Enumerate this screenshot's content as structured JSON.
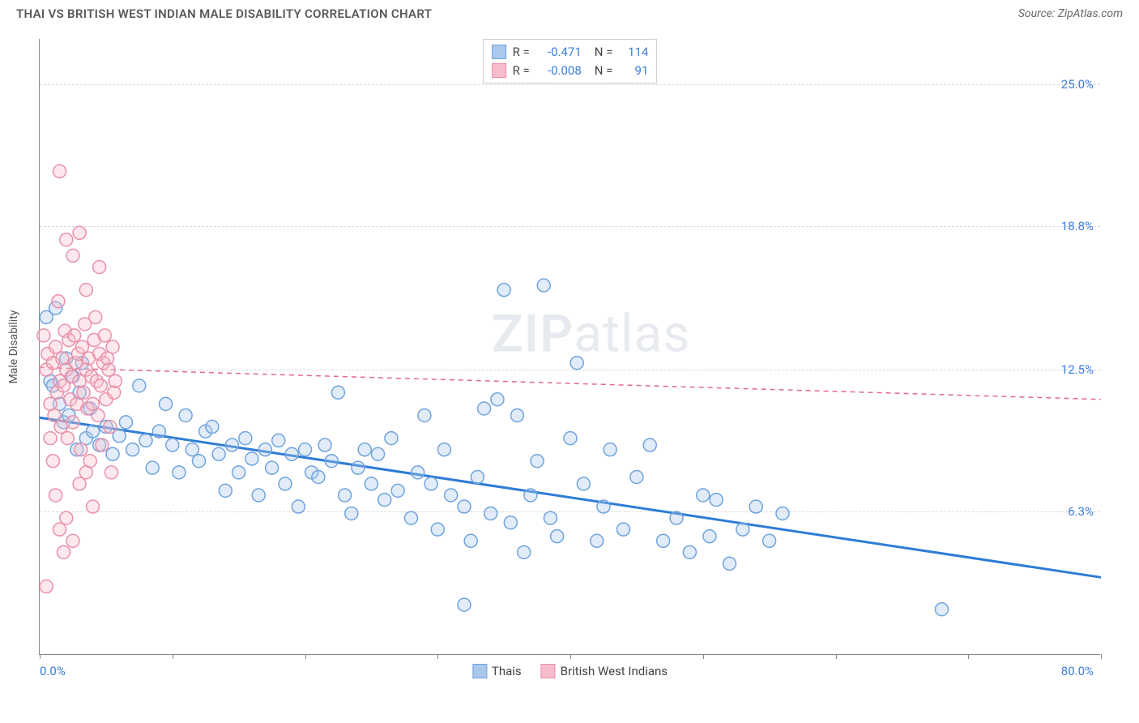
{
  "header": {
    "title": "THAI VS BRITISH WEST INDIAN MALE DISABILITY CORRELATION CHART",
    "source": "Source: ZipAtlas.com"
  },
  "chart": {
    "type": "scatter",
    "y_axis_title": "Male Disability",
    "background_color": "#ffffff",
    "grid_color": "#d8d8d8",
    "axis_color": "#888888",
    "tick_label_color": "#3b7dd8",
    "xlim": [
      0,
      80
    ],
    "ylim": [
      0,
      27
    ],
    "x_ticks": [
      0,
      10,
      20,
      30,
      40,
      50,
      60,
      70,
      80
    ],
    "x_min_label": "0.0%",
    "x_max_label": "80.0%",
    "y_grid": [
      {
        "y": 6.3,
        "label": "6.3%"
      },
      {
        "y": 12.5,
        "label": "12.5%"
      },
      {
        "y": 18.8,
        "label": "18.8%"
      },
      {
        "y": 25.0,
        "label": "25.0%"
      }
    ],
    "marker_radius": 8,
    "marker_stroke_width": 1.5,
    "marker_fill_opacity": 0.35,
    "watermark": {
      "text_bold": "ZIP",
      "text_light": "atlas"
    },
    "series": [
      {
        "key": "thais",
        "label": "Thais",
        "color_fill": "#a9c8ec",
        "color_stroke": "#6fa3df",
        "trend_color": "#2e7cd6",
        "trend_width": 3,
        "trend_dash": "none",
        "trend": {
          "x1": 0,
          "y1": 10.4,
          "x2": 80,
          "y2": 3.4
        },
        "stats": {
          "R": "-0.471",
          "N": "114"
        },
        "points": [
          [
            0.5,
            14.8
          ],
          [
            0.8,
            12.0
          ],
          [
            1.0,
            11.8
          ],
          [
            1.2,
            15.2
          ],
          [
            1.5,
            11.0
          ],
          [
            1.8,
            10.2
          ],
          [
            2.0,
            13.0
          ],
          [
            2.2,
            10.5
          ],
          [
            2.5,
            12.2
          ],
          [
            2.8,
            9.0
          ],
          [
            3.0,
            11.5
          ],
          [
            3.2,
            12.8
          ],
          [
            3.5,
            9.5
          ],
          [
            3.8,
            10.8
          ],
          [
            4.0,
            9.8
          ],
          [
            4.5,
            9.2
          ],
          [
            5.0,
            10.0
          ],
          [
            5.5,
            8.8
          ],
          [
            6.0,
            9.6
          ],
          [
            6.5,
            10.2
          ],
          [
            7.0,
            9.0
          ],
          [
            7.5,
            11.8
          ],
          [
            8.0,
            9.4
          ],
          [
            8.5,
            8.2
          ],
          [
            9.0,
            9.8
          ],
          [
            9.5,
            11.0
          ],
          [
            10.0,
            9.2
          ],
          [
            10.5,
            8.0
          ],
          [
            11.0,
            10.5
          ],
          [
            11.5,
            9.0
          ],
          [
            12.0,
            8.5
          ],
          [
            12.5,
            9.8
          ],
          [
            13.0,
            10.0
          ],
          [
            13.5,
            8.8
          ],
          [
            14.0,
            7.2
          ],
          [
            14.5,
            9.2
          ],
          [
            15.0,
            8.0
          ],
          [
            15.5,
            9.5
          ],
          [
            16.0,
            8.6
          ],
          [
            16.5,
            7.0
          ],
          [
            17.0,
            9.0
          ],
          [
            17.5,
            8.2
          ],
          [
            18.0,
            9.4
          ],
          [
            18.5,
            7.5
          ],
          [
            19.0,
            8.8
          ],
          [
            19.5,
            6.5
          ],
          [
            20.0,
            9.0
          ],
          [
            20.5,
            8.0
          ],
          [
            21.0,
            7.8
          ],
          [
            21.5,
            9.2
          ],
          [
            22.0,
            8.5
          ],
          [
            22.5,
            11.5
          ],
          [
            23.0,
            7.0
          ],
          [
            23.5,
            6.2
          ],
          [
            24.0,
            8.2
          ],
          [
            24.5,
            9.0
          ],
          [
            25.0,
            7.5
          ],
          [
            25.5,
            8.8
          ],
          [
            26.0,
            6.8
          ],
          [
            26.5,
            9.5
          ],
          [
            27.0,
            7.2
          ],
          [
            28.0,
            6.0
          ],
          [
            28.5,
            8.0
          ],
          [
            29.0,
            10.5
          ],
          [
            29.5,
            7.5
          ],
          [
            30.0,
            5.5
          ],
          [
            30.5,
            9.0
          ],
          [
            31.0,
            7.0
          ],
          [
            32.0,
            6.5
          ],
          [
            32.5,
            5.0
          ],
          [
            33.0,
            7.8
          ],
          [
            33.5,
            10.8
          ],
          [
            34.0,
            6.2
          ],
          [
            34.5,
            11.2
          ],
          [
            35.0,
            16.0
          ],
          [
            35.5,
            5.8
          ],
          [
            36.0,
            10.5
          ],
          [
            36.5,
            4.5
          ],
          [
            37.0,
            7.0
          ],
          [
            37.5,
            8.5
          ],
          [
            38.0,
            16.2
          ],
          [
            38.5,
            6.0
          ],
          [
            39.0,
            5.2
          ],
          [
            40.0,
            9.5
          ],
          [
            40.5,
            12.8
          ],
          [
            41.0,
            7.5
          ],
          [
            42.0,
            5.0
          ],
          [
            42.5,
            6.5
          ],
          [
            43.0,
            9.0
          ],
          [
            44.0,
            5.5
          ],
          [
            45.0,
            7.8
          ],
          [
            46.0,
            9.2
          ],
          [
            47.0,
            5.0
          ],
          [
            48.0,
            6.0
          ],
          [
            49.0,
            4.5
          ],
          [
            50.0,
            7.0
          ],
          [
            50.5,
            5.2
          ],
          [
            51.0,
            6.8
          ],
          [
            52.0,
            4.0
          ],
          [
            53.0,
            5.5
          ],
          [
            54.0,
            6.5
          ],
          [
            55.0,
            5.0
          ],
          [
            56.0,
            6.2
          ],
          [
            32.0,
            2.2
          ],
          [
            68.0,
            2.0
          ]
        ]
      },
      {
        "key": "bwi",
        "label": "British West Indians",
        "color_fill": "#f6bccb",
        "color_stroke": "#e990aa",
        "trend_color": "#e26a8a",
        "trend_width": 1.5,
        "trend_dash": "6 5",
        "trend": {
          "x1": 0,
          "y1": 12.6,
          "x2": 80,
          "y2": 11.2
        },
        "stats": {
          "R": "-0.008",
          "N": "91"
        },
        "points": [
          [
            0.3,
            14.0
          ],
          [
            0.5,
            12.5
          ],
          [
            0.6,
            13.2
          ],
          [
            0.8,
            11.0
          ],
          [
            1.0,
            12.8
          ],
          [
            1.1,
            10.5
          ],
          [
            1.2,
            13.5
          ],
          [
            1.3,
            11.5
          ],
          [
            1.4,
            15.5
          ],
          [
            1.5,
            12.0
          ],
          [
            1.6,
            10.0
          ],
          [
            1.7,
            13.0
          ],
          [
            1.8,
            11.8
          ],
          [
            1.9,
            14.2
          ],
          [
            2.0,
            12.5
          ],
          [
            2.1,
            9.5
          ],
          [
            2.2,
            13.8
          ],
          [
            2.3,
            11.2
          ],
          [
            2.4,
            12.2
          ],
          [
            2.5,
            10.2
          ],
          [
            2.6,
            14.0
          ],
          [
            2.7,
            12.8
          ],
          [
            2.8,
            11.0
          ],
          [
            2.9,
            13.2
          ],
          [
            3.0,
            12.0
          ],
          [
            3.1,
            9.0
          ],
          [
            3.2,
            13.5
          ],
          [
            3.3,
            11.5
          ],
          [
            3.4,
            14.5
          ],
          [
            3.5,
            12.5
          ],
          [
            3.6,
            10.8
          ],
          [
            3.7,
            13.0
          ],
          [
            3.8,
            8.5
          ],
          [
            3.9,
            12.2
          ],
          [
            4.0,
            11.0
          ],
          [
            4.1,
            13.8
          ],
          [
            4.2,
            14.8
          ],
          [
            4.3,
            12.0
          ],
          [
            4.4,
            10.5
          ],
          [
            4.5,
            13.2
          ],
          [
            4.6,
            11.8
          ],
          [
            4.7,
            9.2
          ],
          [
            4.8,
            12.8
          ],
          [
            4.9,
            14.0
          ],
          [
            5.0,
            11.2
          ],
          [
            5.1,
            13.0
          ],
          [
            5.2,
            12.5
          ],
          [
            5.3,
            10.0
          ],
          [
            5.4,
            8.0
          ],
          [
            5.5,
            13.5
          ],
          [
            5.6,
            11.5
          ],
          [
            5.7,
            12.0
          ],
          [
            2.0,
            18.2
          ],
          [
            3.0,
            18.5
          ],
          [
            4.5,
            17.0
          ],
          [
            1.5,
            21.2
          ],
          [
            2.5,
            17.5
          ],
          [
            3.5,
            16.0
          ],
          [
            0.5,
            3.0
          ],
          [
            1.0,
            8.5
          ],
          [
            1.5,
            5.5
          ],
          [
            2.0,
            6.0
          ],
          [
            2.5,
            5.0
          ],
          [
            3.0,
            7.5
          ],
          [
            3.5,
            8.0
          ],
          [
            1.2,
            7.0
          ],
          [
            4.0,
            6.5
          ],
          [
            0.8,
            9.5
          ],
          [
            1.8,
            4.5
          ]
        ]
      }
    ],
    "bottom_legend": [
      {
        "label": "Thais",
        "fill": "#a9c8ec",
        "stroke": "#6fa3df"
      },
      {
        "label": "British West Indians",
        "fill": "#f6bccb",
        "stroke": "#e990aa"
      }
    ]
  }
}
